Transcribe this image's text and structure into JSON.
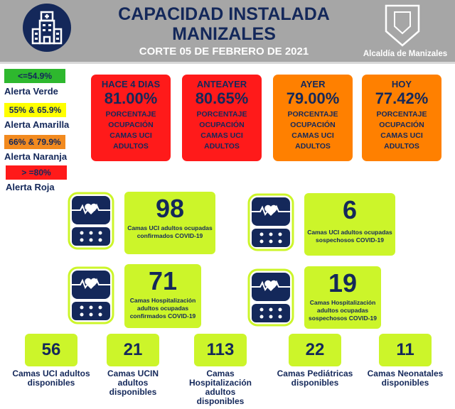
{
  "header": {
    "title_line1": "CAPACIDAD INSTALADA",
    "title_line2": "MANIZALES",
    "subtitle": "CORTE 05 DE FEBRERO DE 2021",
    "org": "Alcaldía de Manizales"
  },
  "legend": [
    {
      "range": "<=54.9%",
      "label": "Alerta Verde",
      "color": "#2eb82e"
    },
    {
      "range": "55% & 65.9%",
      "label": "Alerta Amarilla",
      "color": "#ffff00"
    },
    {
      "range": "66% & 79.9%",
      "label": "Alerta Naranja",
      "color": "#f28a1f"
    },
    {
      "range": "> =80%",
      "label": "Alerta Roja",
      "color": "#ff1a1a"
    }
  ],
  "cards": [
    {
      "day": "HACE 4 DIAS",
      "value": "81.00%",
      "desc": "PORCENTAJE OCUPACIÓN CAMAS UCI ADULTOS"
    },
    {
      "day": "ANTEAYER",
      "value": "80.65%",
      "desc": "PORCENTAJE OCUPACIÓN CAMAS UCI ADULTOS"
    },
    {
      "day": "AYER",
      "value": "79.00%",
      "desc": "PORCENTAJE OCUPACIÓN CAMAS UCI ADULTOS"
    },
    {
      "day": "HOY",
      "value": "77.42%",
      "desc": "PORCENTAJE OCUPACIÓN CAMAS UCI ADULTOS"
    }
  ],
  "occupied": [
    {
      "value": "98",
      "label": "Camas UCI adultos ocupadas confirmados COVID-19"
    },
    {
      "value": "6",
      "label": "Camas UCI adultos ocupadas sospechosos COVID-19"
    },
    {
      "value": "71",
      "label": "Camas  Hospitalización adultos ocupadas confirmados COVID-19"
    },
    {
      "value": "19",
      "label": "Camas  Hospitalización adultos ocupadas sospechosos COVID-19"
    }
  ],
  "available": [
    {
      "value": "56",
      "label": "Camas UCI adultos disponibles"
    },
    {
      "value": "21",
      "label": "Camas UCIN adultos disponibles"
    },
    {
      "value": "113",
      "label": "Camas Hospitalización adultos disponibles"
    },
    {
      "value": "22",
      "label": "Camas Pediátricas disponibles"
    },
    {
      "value": "11",
      "label": "Camas Neonatales disponibles"
    }
  ]
}
